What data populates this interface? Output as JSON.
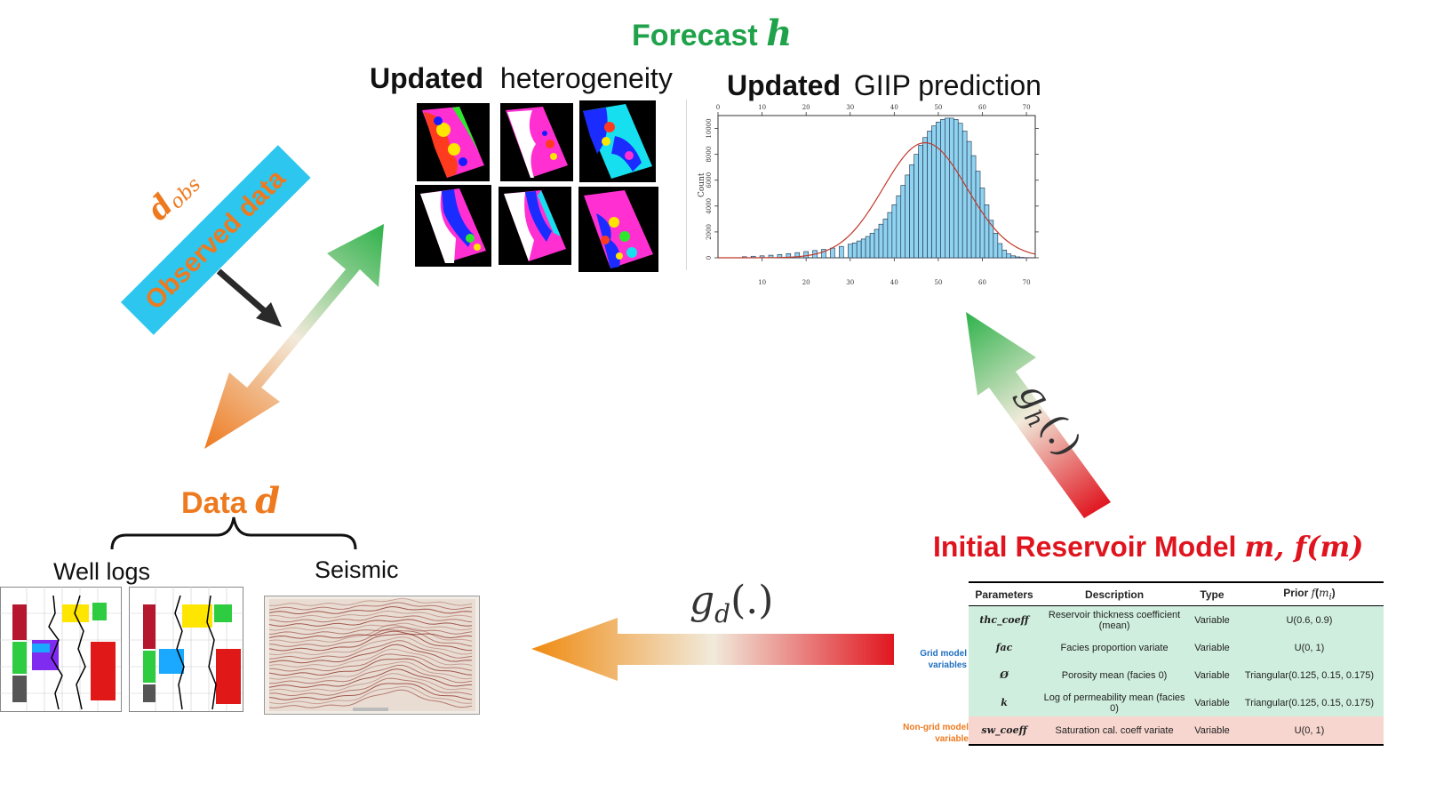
{
  "forecast": {
    "prefix": "Forecast",
    "symbol": "h"
  },
  "heterogeneity": {
    "bold": "Updated",
    "rest": "heterogeneity"
  },
  "giip": {
    "bold": "Updated",
    "rest": "GIIP prediction"
  },
  "data": {
    "prefix": "Data",
    "symbol": "d"
  },
  "well_logs_label": "Well logs",
  "seismic_label": "Seismic",
  "observed": {
    "symbol": "d",
    "subscript": "obs",
    "label": "Observed data"
  },
  "gh_label": {
    "func": "g",
    "sub": "h",
    "args": "(.)"
  },
  "gd_label": {
    "func": "g",
    "sub": "d",
    "args": "(.)"
  },
  "initial_model": {
    "prefix": "Initial Reservoir Model",
    "math": "m, f(m)"
  },
  "table": {
    "headers": [
      "Parameters",
      "Description",
      "Type",
      "Prior f(m_i)"
    ],
    "rows": [
      {
        "param": "thc_coeff",
        "desc": "Reservoir thickness coefficient (mean)",
        "type": "Variable",
        "prior": "U(0.6, 0.9)"
      },
      {
        "param": "fac",
        "desc": "Facies proportion variate",
        "type": "Variable",
        "prior": "U(0, 1)"
      },
      {
        "param": "Ø",
        "desc": "Porosity mean (facies 0)",
        "type": "Variable",
        "prior": "Triangular(0.125, 0.15, 0.175)"
      },
      {
        "param": "k",
        "desc": "Log of permeability mean (facies 0)",
        "type": "Variable",
        "prior": "Triangular(0.125, 0.15, 0.175)"
      },
      {
        "param": "sw_coeff",
        "desc": "Saturation cal. coeff variate",
        "type": "Variable",
        "prior": "U(0, 1)"
      }
    ],
    "grid_label": "Grid model variables",
    "nongrid_label": "Non-grid model variable"
  },
  "colors": {
    "green": "#1fa24a",
    "orange": "#ee7a1f",
    "red": "#e0141e",
    "cyan": "#2cc6ee",
    "blue_label": "#1f6fc0"
  },
  "chart_data": {
    "type": "bar",
    "title": "",
    "xlabel": "",
    "ylabel": "Count",
    "x_top_ticks": [
      "0",
      "10",
      "20",
      "30",
      "40",
      "50",
      "60",
      "70"
    ],
    "x_bottom_ticks": [
      "10",
      "20",
      "30",
      "40",
      "50",
      "60",
      "70"
    ],
    "y_ticks": [
      "0",
      "2000",
      "4000",
      "6000",
      "8000",
      "10000"
    ],
    "xlim": [
      0,
      72
    ],
    "ylim": [
      0,
      11000
    ],
    "bin_width": 1,
    "x": [
      6,
      8,
      10,
      12,
      14,
      16,
      18,
      20,
      22,
      24,
      26,
      28,
      30,
      31,
      32,
      33,
      34,
      35,
      36,
      37,
      38,
      39,
      40,
      41,
      42,
      43,
      44,
      45,
      46,
      47,
      48,
      49,
      50,
      51,
      52,
      53,
      54,
      55,
      56,
      57,
      58,
      59,
      60,
      61,
      62,
      63,
      64,
      65,
      66,
      67,
      68,
      69,
      70
    ],
    "values": [
      80,
      120,
      150,
      200,
      250,
      320,
      400,
      480,
      560,
      650,
      750,
      880,
      1050,
      1150,
      1300,
      1450,
      1650,
      1900,
      2200,
      2600,
      3000,
      3500,
      4100,
      4800,
      5600,
      6400,
      7200,
      8000,
      8700,
      9300,
      9800,
      10200,
      10500,
      10700,
      10800,
      10800,
      10700,
      10400,
      9800,
      9000,
      7900,
      6700,
      5400,
      4100,
      2900,
      1900,
      1100,
      600,
      300,
      150,
      70,
      30,
      10
    ],
    "fit_curve": {
      "type": "normal",
      "mean": 47,
      "sd": 9.5,
      "peak": 8900
    }
  }
}
